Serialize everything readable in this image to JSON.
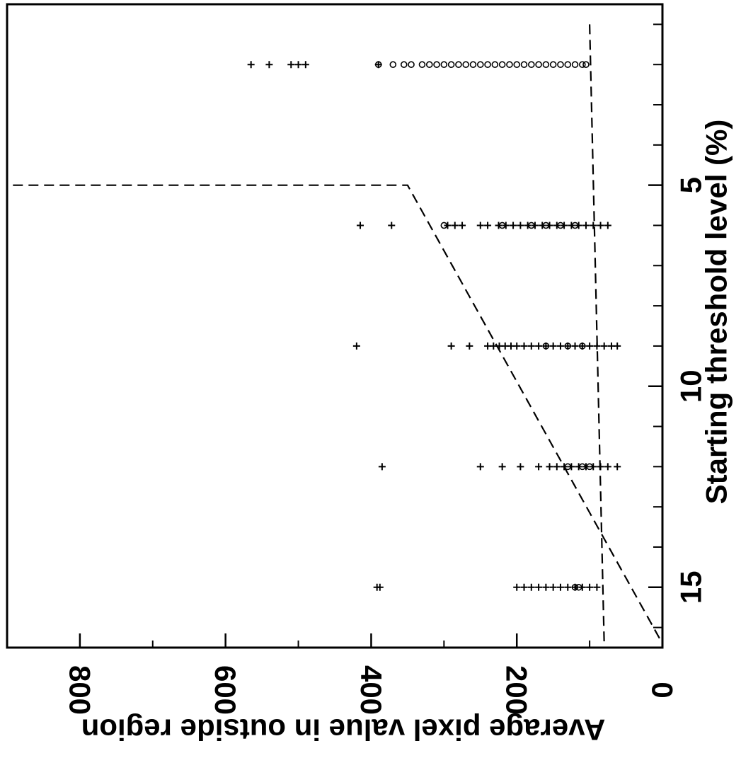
{
  "chart_data": {
    "type": "scatter",
    "title": "",
    "xlabel": "Starting threshold level (%)",
    "ylabel": "Average pixel value in outside region",
    "xlim": [
      0.5,
      16.5
    ],
    "ylim": [
      0,
      900
    ],
    "x_ticks": [
      5,
      10,
      15
    ],
    "x_tick_labels": [
      "5",
      "10",
      "15"
    ],
    "x_minor_ticks": [
      1,
      2,
      3,
      4,
      6,
      7,
      8,
      9,
      11,
      12,
      13,
      14,
      16
    ],
    "y_ticks": [
      0,
      200,
      400,
      600,
      800
    ],
    "y_tick_labels": [
      "0",
      "200",
      "400",
      "600",
      "800"
    ],
    "y_minor_ticks": [
      100,
      300,
      500,
      700
    ],
    "grid": false,
    "legend": false,
    "orientation": "rotated 90 degrees clockwise",
    "series": [
      {
        "marker": "plus",
        "points": [
          [
            2,
            565
          ],
          [
            2,
            540
          ],
          [
            2,
            510
          ],
          [
            2,
            500
          ],
          [
            2,
            490
          ],
          [
            2,
            390
          ],
          [
            6,
            415
          ],
          [
            6,
            372
          ],
          [
            6,
            295
          ],
          [
            6,
            285
          ],
          [
            6,
            275
          ],
          [
            6,
            250
          ],
          [
            6,
            240
          ],
          [
            6,
            225
          ],
          [
            6,
            215
          ],
          [
            6,
            205
          ],
          [
            6,
            195
          ],
          [
            6,
            185
          ],
          [
            6,
            175
          ],
          [
            6,
            165
          ],
          [
            6,
            155
          ],
          [
            6,
            145
          ],
          [
            6,
            135
          ],
          [
            6,
            125
          ],
          [
            6,
            115
          ],
          [
            6,
            105
          ],
          [
            6,
            95
          ],
          [
            6,
            85
          ],
          [
            6,
            75
          ],
          [
            9,
            420
          ],
          [
            9,
            290
          ],
          [
            9,
            265
          ],
          [
            9,
            240
          ],
          [
            9,
            232
          ],
          [
            9,
            224
          ],
          [
            9,
            216
          ],
          [
            9,
            208
          ],
          [
            9,
            200
          ],
          [
            9,
            190
          ],
          [
            9,
            180
          ],
          [
            9,
            170
          ],
          [
            9,
            160
          ],
          [
            9,
            150
          ],
          [
            9,
            140
          ],
          [
            9,
            130
          ],
          [
            9,
            120
          ],
          [
            9,
            110
          ],
          [
            9,
            100
          ],
          [
            9,
            90
          ],
          [
            9,
            80
          ],
          [
            9,
            70
          ],
          [
            9,
            62
          ],
          [
            12,
            385
          ],
          [
            12,
            250
          ],
          [
            12,
            220
          ],
          [
            12,
            195
          ],
          [
            12,
            170
          ],
          [
            12,
            155
          ],
          [
            12,
            145
          ],
          [
            12,
            135
          ],
          [
            12,
            125
          ],
          [
            12,
            115
          ],
          [
            12,
            105
          ],
          [
            12,
            95
          ],
          [
            12,
            85
          ],
          [
            12,
            75
          ],
          [
            12,
            62
          ],
          [
            15,
            392
          ],
          [
            15,
            388
          ],
          [
            15,
            200
          ],
          [
            15,
            190
          ],
          [
            15,
            180
          ],
          [
            15,
            170
          ],
          [
            15,
            160
          ],
          [
            15,
            150
          ],
          [
            15,
            140
          ],
          [
            15,
            130
          ],
          [
            15,
            120
          ],
          [
            15,
            110
          ],
          [
            15,
            100
          ],
          [
            15,
            90
          ]
        ]
      },
      {
        "marker": "circle",
        "points": [
          [
            2,
            390
          ],
          [
            2,
            370
          ],
          [
            2,
            355
          ],
          [
            2,
            345
          ],
          [
            2,
            330
          ],
          [
            2,
            320
          ],
          [
            2,
            310
          ],
          [
            2,
            300
          ],
          [
            2,
            290
          ],
          [
            2,
            280
          ],
          [
            2,
            270
          ],
          [
            2,
            260
          ],
          [
            2,
            250
          ],
          [
            2,
            240
          ],
          [
            2,
            230
          ],
          [
            2,
            220
          ],
          [
            2,
            210
          ],
          [
            2,
            200
          ],
          [
            2,
            190
          ],
          [
            2,
            180
          ],
          [
            2,
            170
          ],
          [
            2,
            160
          ],
          [
            2,
            150
          ],
          [
            2,
            140
          ],
          [
            2,
            130
          ],
          [
            2,
            120
          ],
          [
            2,
            110
          ],
          [
            2,
            105
          ],
          [
            6,
            300
          ],
          [
            6,
            220
          ],
          [
            6,
            180
          ],
          [
            6,
            160
          ],
          [
            6,
            140
          ],
          [
            6,
            120
          ],
          [
            9,
            160
          ],
          [
            9,
            130
          ],
          [
            9,
            110
          ],
          [
            12,
            130
          ],
          [
            12,
            110
          ],
          [
            12,
            100
          ],
          [
            15,
            120
          ],
          [
            15,
            115
          ]
        ]
      }
    ],
    "lines": [
      {
        "style": "dashed",
        "points": [
          [
            0.5,
            900
          ],
          [
            5,
            900
          ],
          [
            5,
            350
          ],
          [
            16.4,
            0
          ]
        ]
      },
      {
        "style": "dashed",
        "points": [
          [
            1,
            100
          ],
          [
            16.4,
            80
          ]
        ]
      }
    ]
  }
}
